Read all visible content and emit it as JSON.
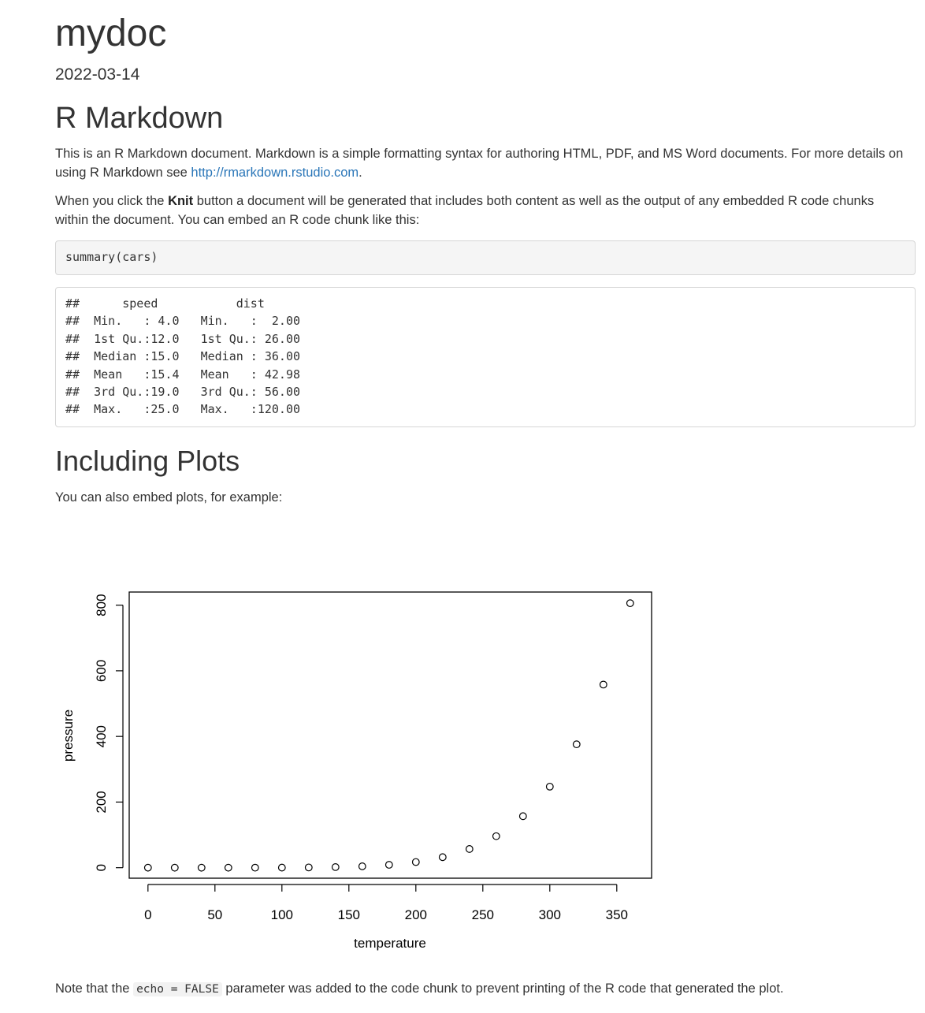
{
  "doc": {
    "title": "mydoc",
    "date": "2022-03-14"
  },
  "section1": {
    "heading": "R Markdown",
    "para1_text": "This is an R Markdown document. Markdown is a simple formatting syntax for authoring HTML, PDF, and MS Word documents. For more details on using R Markdown see ",
    "para1_link": "http://rmarkdown.rstudio.com",
    "para1_end": ".",
    "para2_before": "When you click the ",
    "para2_bold": "Knit",
    "para2_after": " button a document will be generated that includes both content as well as the output of any embedded R code chunks within the document. You can embed an R code chunk like this:",
    "code_input": "summary(cars)",
    "code_output": "##      speed           dist       \n##  Min.   : 4.0   Min.   :  2.00  \n##  1st Qu.:12.0   1st Qu.: 26.00  \n##  Median :15.0   Median : 36.00  \n##  Mean   :15.4   Mean   : 42.98  \n##  3rd Qu.:19.0   3rd Qu.: 56.00  \n##  Max.   :25.0   Max.   :120.00  "
  },
  "section2": {
    "heading": "Including Plots",
    "intro": "You can also embed plots, for example:",
    "note_before": "Note that the ",
    "note_code": "echo = FALSE",
    "note_after": " parameter was added to the code chunk to prevent printing of the R code that generated the plot."
  },
  "chart_data": {
    "type": "scatter",
    "xlabel": "temperature",
    "ylabel": "pressure",
    "xlim": [
      -14,
      376
    ],
    "ylim": [
      -32,
      840
    ],
    "xticks": [
      0,
      50,
      100,
      150,
      200,
      250,
      300,
      350
    ],
    "yticks": [
      0,
      200,
      400,
      600,
      800
    ],
    "grid": false,
    "x": [
      0,
      20,
      40,
      60,
      80,
      100,
      120,
      140,
      160,
      180,
      200,
      220,
      240,
      260,
      280,
      300,
      320,
      340,
      360
    ],
    "y": [
      0.0002,
      0.0012,
      0.006,
      0.03,
      0.09,
      0.27,
      0.75,
      1.85,
      4.2,
      8.8,
      17.3,
      32.1,
      57.0,
      96.0,
      157.0,
      247.0,
      376.0,
      558.0,
      806.0
    ]
  }
}
